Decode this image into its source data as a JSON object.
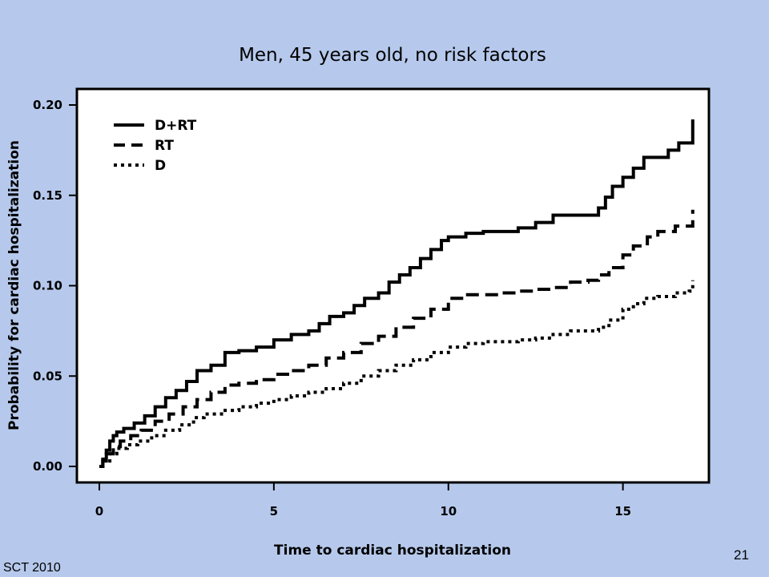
{
  "slide": {
    "footer_left": "SCT 2010",
    "page_number": "21",
    "background_color": "#b6c9ec"
  },
  "chart_data": {
    "type": "line",
    "title": "Men, 45 years old, no risk factors",
    "xlabel": "Time to cardiac hospitalization",
    "ylabel": "Probability for cardiac hospitalization",
    "xlim": [
      0,
      17.5
    ],
    "ylim": [
      0,
      0.2
    ],
    "x_ticks": [
      0,
      5,
      10,
      15
    ],
    "x_tick_labels": [
      "0",
      "5",
      "10",
      "15"
    ],
    "y_ticks": [
      0,
      0.05,
      0.1,
      0.15,
      0.2
    ],
    "y_tick_labels": [
      "0.00",
      "0.05",
      "0.10",
      "0.15",
      "0.20"
    ],
    "grid": false,
    "legend_position": "top-left",
    "series": [
      {
        "name": "D+RT",
        "style": "solid",
        "color": "#000000",
        "x": [
          0,
          0.1,
          0.2,
          0.3,
          0.4,
          0.5,
          0.7,
          1.0,
          1.3,
          1.6,
          1.9,
          2.2,
          2.5,
          2.8,
          3.2,
          3.6,
          4.0,
          4.5,
          5.0,
          5.5,
          6.0,
          6.3,
          6.6,
          7.0,
          7.3,
          7.6,
          8.0,
          8.3,
          8.6,
          8.9,
          9.2,
          9.5,
          9.8,
          10.0,
          10.5,
          11.0,
          11.5,
          12.0,
          12.5,
          13.0,
          13.5,
          14.0,
          14.3,
          14.5,
          14.7,
          15.0,
          15.3,
          15.6,
          16.0,
          16.3,
          16.6,
          16.9,
          17.0
        ],
        "y": [
          0,
          0.004,
          0.009,
          0.014,
          0.017,
          0.019,
          0.021,
          0.024,
          0.028,
          0.033,
          0.038,
          0.042,
          0.047,
          0.053,
          0.056,
          0.063,
          0.064,
          0.066,
          0.07,
          0.073,
          0.075,
          0.079,
          0.083,
          0.085,
          0.089,
          0.093,
          0.096,
          0.102,
          0.106,
          0.11,
          0.115,
          0.12,
          0.125,
          0.127,
          0.129,
          0.13,
          0.13,
          0.132,
          0.135,
          0.139,
          0.139,
          0.139,
          0.143,
          0.149,
          0.155,
          0.16,
          0.165,
          0.171,
          0.171,
          0.175,
          0.179,
          0.179,
          0.192
        ]
      },
      {
        "name": "RT",
        "style": "dashed",
        "color": "#000000",
        "x": [
          0,
          0.1,
          0.2,
          0.4,
          0.6,
          0.9,
          1.2,
          1.6,
          2.0,
          2.4,
          2.8,
          3.2,
          3.6,
          4.0,
          4.5,
          5.0,
          5.5,
          6.0,
          6.5,
          7.0,
          7.5,
          8.0,
          8.5,
          9.0,
          9.5,
          10.0,
          10.5,
          11.0,
          11.5,
          12.0,
          12.5,
          13.0,
          13.5,
          14.0,
          14.3,
          14.6,
          15.0,
          15.3,
          15.7,
          16.0,
          16.5,
          16.9,
          17.0
        ],
        "y": [
          0,
          0.003,
          0.007,
          0.011,
          0.014,
          0.017,
          0.02,
          0.025,
          0.029,
          0.033,
          0.037,
          0.041,
          0.045,
          0.046,
          0.048,
          0.051,
          0.053,
          0.056,
          0.06,
          0.063,
          0.068,
          0.072,
          0.077,
          0.082,
          0.087,
          0.093,
          0.095,
          0.095,
          0.096,
          0.097,
          0.098,
          0.099,
          0.102,
          0.103,
          0.106,
          0.11,
          0.117,
          0.122,
          0.127,
          0.13,
          0.133,
          0.133,
          0.142
        ]
      },
      {
        "name": "D",
        "style": "dotted",
        "color": "#000000",
        "x": [
          0,
          0.1,
          0.3,
          0.5,
          0.8,
          1.1,
          1.5,
          1.9,
          2.3,
          2.7,
          3.0,
          3.5,
          4.0,
          4.5,
          5.0,
          5.5,
          6.0,
          6.5,
          7.0,
          7.5,
          8.0,
          8.5,
          9.0,
          9.5,
          10.0,
          10.5,
          11.0,
          11.5,
          12.0,
          12.5,
          13.0,
          13.5,
          14.0,
          14.3,
          14.6,
          15.0,
          15.3,
          15.6,
          16.0,
          16.5,
          16.9,
          17.0
        ],
        "y": [
          0,
          0.003,
          0.007,
          0.01,
          0.012,
          0.014,
          0.017,
          0.02,
          0.023,
          0.027,
          0.029,
          0.031,
          0.033,
          0.035,
          0.037,
          0.039,
          0.041,
          0.043,
          0.046,
          0.05,
          0.053,
          0.056,
          0.059,
          0.063,
          0.066,
          0.068,
          0.069,
          0.069,
          0.07,
          0.071,
          0.073,
          0.075,
          0.075,
          0.077,
          0.081,
          0.087,
          0.09,
          0.093,
          0.094,
          0.096,
          0.097,
          0.103
        ]
      }
    ]
  }
}
